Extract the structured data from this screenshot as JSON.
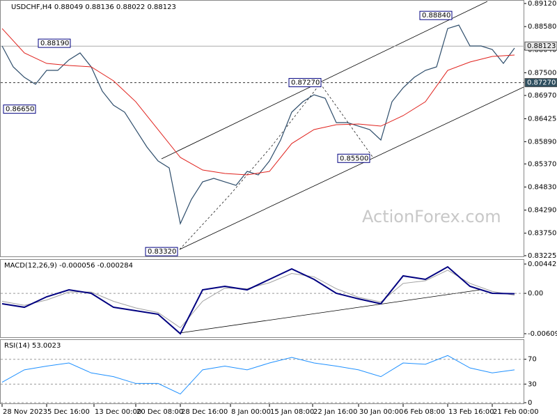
{
  "chart_data": {
    "type": "line",
    "title": "USDCHF,H4 0.88049 0.88136 0.88022 0.88123",
    "watermark": "ActionForex.com",
    "x": [
      0,
      8,
      16,
      24,
      32,
      40,
      48,
      56,
      64,
      72,
      80,
      88,
      96,
      104,
      112,
      120,
      128,
      136,
      144,
      152,
      160,
      168,
      176,
      184,
      192,
      200,
      208,
      216,
      224,
      232,
      240,
      248,
      256,
      264,
      272,
      280,
      288,
      296,
      304,
      312,
      320,
      328,
      336,
      344,
      352,
      360,
      368
    ],
    "values": [
      0.88126,
      0.87638,
      0.87393,
      0.87231,
      0.87556,
      0.87556,
      0.87801,
      0.87964,
      0.87638,
      0.87068,
      0.86742,
      0.86579,
      0.86172,
      0.85765,
      0.85439,
      0.85276,
      0.83973,
      0.84543,
      0.8495,
      0.85032,
      0.8495,
      0.84869,
      0.85195,
      0.85113,
      0.85439,
      0.85928,
      0.86579,
      0.86823,
      0.86986,
      0.86905,
      0.86335,
      0.86335,
      0.86253,
      0.86172,
      0.85928,
      0.86823,
      0.87149,
      0.87393,
      0.87556,
      0.87638,
      0.88534,
      0.88615,
      0.88126,
      0.88126,
      0.88045,
      0.87719,
      0.88078
    ],
    "color": "#2e4d6b",
    "ma": {
      "x": [
        0,
        16,
        32,
        48,
        64,
        80,
        96,
        112,
        128,
        144,
        160,
        176,
        192,
        208,
        224,
        240,
        256,
        272,
        288,
        304,
        320,
        336,
        352,
        368
      ],
      "values": [
        0.88534,
        0.87964,
        0.87719,
        0.8767,
        0.87638,
        0.87312,
        0.86823,
        0.86172,
        0.85521,
        0.85227,
        0.85146,
        0.85113,
        0.85195,
        0.85846,
        0.86172,
        0.86286,
        0.86302,
        0.86253,
        0.86498,
        0.86823,
        0.87556,
        0.87752,
        0.87882,
        0.87915
      ],
      "color": "#e0201b"
    },
    "xlim": [
      -1,
      375
    ],
    "ylim": [
      0.83192,
      0.89185
    ],
    "yticks": [
      {
        "value": 0.8912,
        "label": "0.89120"
      },
      {
        "value": 0.8858,
        "label": "0.88580"
      },
      {
        "value": 0.8804,
        "label": "0.88040"
      },
      {
        "value": 0.875,
        "label": "0.87500"
      },
      {
        "value": 0.8697,
        "label": "0.86970"
      },
      {
        "value": 0.86425,
        "label": "0.86425"
      },
      {
        "value": 0.8589,
        "label": "0.85890"
      },
      {
        "value": 0.8537,
        "label": "0.85370"
      },
      {
        "value": 0.8483,
        "label": "0.84830"
      },
      {
        "value": 0.8429,
        "label": "0.84290"
      },
      {
        "value": 0.8375,
        "label": "0.83750"
      },
      {
        "value": 0.83225,
        "label": "0.83225"
      }
    ],
    "xticks": [
      {
        "value": 0,
        "label": "28 Nov 2023"
      },
      {
        "value": 32,
        "label": "5 Dec 16:00"
      },
      {
        "value": 66,
        "label": "13 Dec 00:00"
      },
      {
        "value": 96,
        "label": "20 Dec 08:00"
      },
      {
        "value": 128,
        "label": "28 Dec 16:00"
      },
      {
        "value": 164,
        "label": "8 Jan 00:00"
      },
      {
        "value": 192,
        "label": "15 Jan 08:00"
      },
      {
        "value": 223,
        "label": "22 Jan 16:00"
      },
      {
        "value": 256,
        "label": "30 Jan 00:00"
      },
      {
        "value": 288,
        "label": "6 Feb 08:00"
      },
      {
        "value": 320,
        "label": "13 Feb 16:00"
      },
      {
        "value": 352,
        "label": "21 Feb 00:00"
      }
    ],
    "price_lines": [
      {
        "value": 0.88123,
        "label": "0.88123",
        "dashed": false
      },
      {
        "value": 0.8727,
        "label": "0.87270",
        "dashed": true
      }
    ],
    "annotations": [
      {
        "value": 0.8819,
        "label": "0.88190",
        "x": 26
      },
      {
        "value": 0.8665,
        "label": "0.86650",
        "x": 1
      },
      {
        "value": 0.8727,
        "label": "0.87270",
        "x": 206
      },
      {
        "value": 0.8884,
        "label": "0.88840",
        "x": 300
      },
      {
        "value": 0.855,
        "label": "0.85500",
        "x": 241
      },
      {
        "value": 0.8332,
        "label": "0.83320",
        "x": 103
      }
    ],
    "macd": {
      "title": "MACD(12,26,9) -0.000056 -0.000284",
      "x": [
        0,
        16,
        32,
        48,
        64,
        80,
        96,
        112,
        128,
        144,
        160,
        176,
        192,
        208,
        224,
        240,
        256,
        272,
        288,
        304,
        320,
        336,
        352,
        368
      ],
      "series": [
        {
          "color": "#000080",
          "values": [
            -0.00157,
            -0.0021,
            -0.00052,
            0.00053,
            1e-05,
            -0.0021,
            -0.00262,
            -0.00315,
            -0.00609,
            0.00053,
            0.00106,
            0.00053,
            0.00211,
            0.00369,
            0.00211,
            1e-05,
            -0.00083,
            -0.00157,
            0.00264,
            0.00211,
            0.004,
            0.00106,
            1e-05,
            -5.6e-05
          ]
        },
        {
          "color": "#a0a0a0",
          "values": [
            -0.0012,
            -0.0018,
            -0.001,
            0.0002,
            0.0002,
            -0.0012,
            -0.0022,
            -0.0029,
            -0.0052,
            -0.0012,
            0.0008,
            0.0007,
            0.0016,
            0.003,
            0.0025,
            0.0007,
            -0.0006,
            -0.0013,
            0.0015,
            0.0019,
            0.0035,
            0.0015,
            0.0003,
            -0.000284
          ]
        }
      ],
      "ylim": [
        -0.006723,
        0.005056
      ],
      "yticks": [
        0.004425,
        {
          "value": 0,
          "label": "0.00"
        },
        -0.006092
      ]
    },
    "rsi": {
      "title": "RSI(14) 53.0023",
      "x": [
        0,
        16,
        32,
        48,
        64,
        80,
        96,
        112,
        128,
        144,
        160,
        176,
        192,
        208,
        224,
        240,
        256,
        272,
        288,
        304,
        320,
        336,
        352,
        368
      ],
      "values": [
        33,
        53,
        59,
        64,
        48,
        42,
        31,
        31,
        14,
        53,
        59,
        53,
        64,
        73,
        64,
        59,
        53,
        42,
        64,
        62,
        76,
        56,
        48,
        53
      ],
      "color": "#1e90ff",
      "ylim": [
        -2.2,
        101.1
      ],
      "yticks": [
        70,
        30,
        0
      ]
    }
  }
}
